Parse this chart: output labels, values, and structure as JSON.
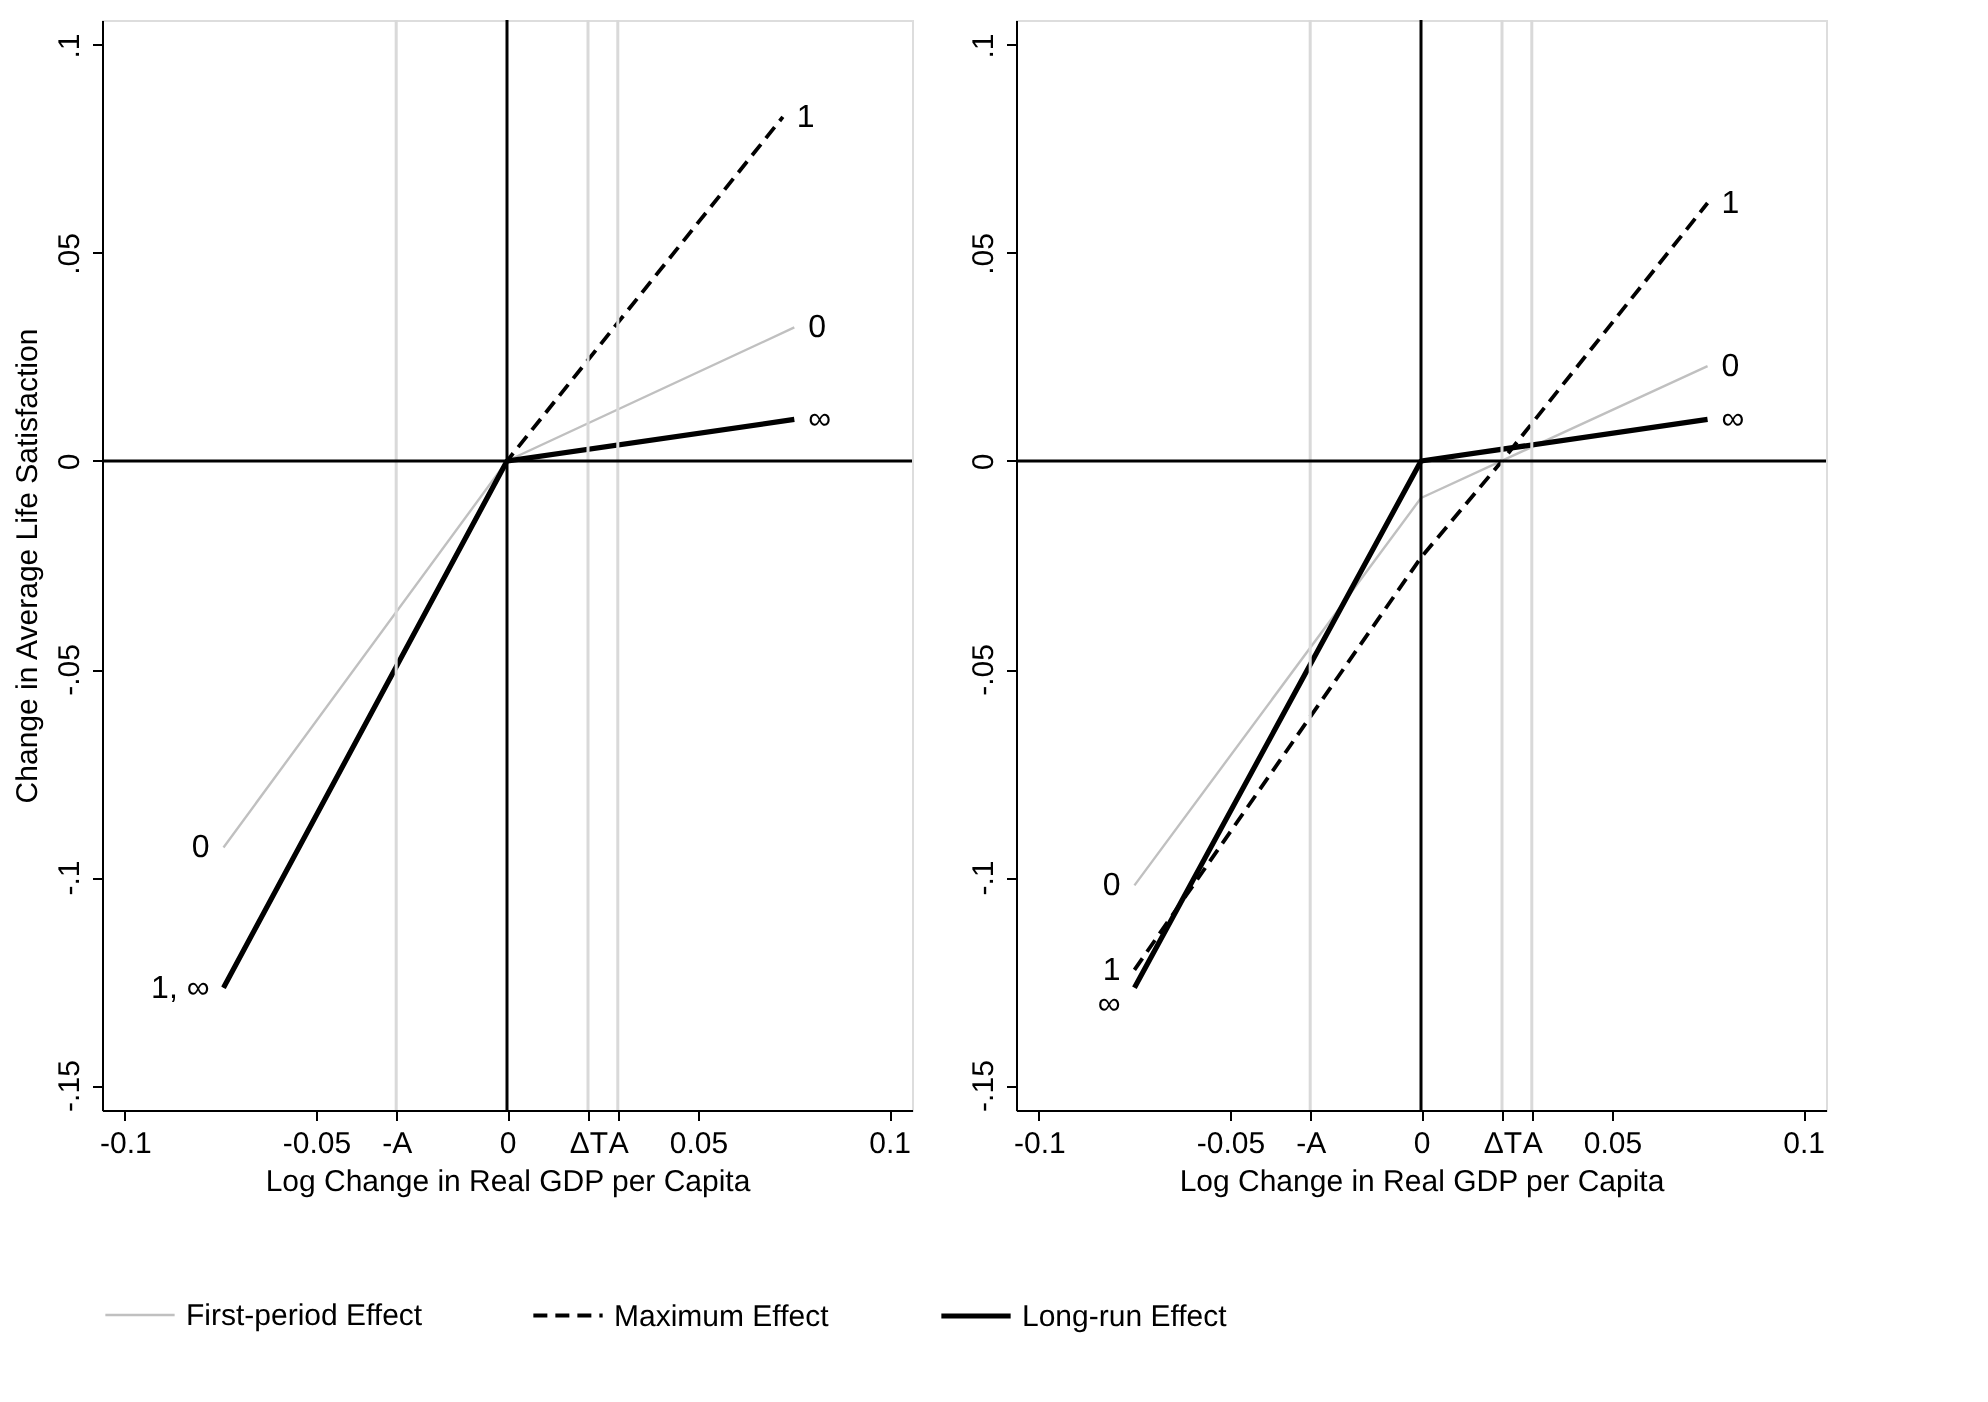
{
  "chart_data": [
    {
      "type": "line",
      "xlabel": "Log Change in Real GDP per Capita",
      "ylabel": "Change in Average Life Satisfaction",
      "xlim": [
        -0.106,
        0.106
      ],
      "ylim": [
        -0.156,
        0.106
      ],
      "xticks": [
        -0.1,
        -0.05,
        {
          "value": -0.029,
          "label": "-A"
        },
        0,
        {
          "value": 0.0212,
          "label": "ΔT"
        },
        {
          "value": 0.029,
          "label": "A"
        },
        0.05,
        0.1
      ],
      "yticks": [
        {
          "value": -0.15,
          "label": "-.15"
        },
        {
          "value": -0.1,
          "label": "-.1"
        },
        {
          "value": -0.05,
          "label": "-.05"
        },
        0,
        {
          "value": 0.05,
          "label": ".05"
        },
        {
          "value": 0.1,
          "label": ".1"
        }
      ],
      "grid": false,
      "legend": "bottom",
      "series": [
        {
          "name": "First-period Effect",
          "color": "#c0c0c0",
          "line_style": "solid",
          "x": [
            -0.0742,
            0,
            0.0752
          ],
          "values": [
            -0.0929,
            0,
            0.0321
          ]
        },
        {
          "name": "Maximum Effect",
          "color": "#000000",
          "line_style": "dashed",
          "x": [
            -0.0742,
            0,
            0.0722
          ],
          "values": [
            -0.1266,
            0,
            0.0827
          ]
        },
        {
          "name": "Long-run Effect",
          "color": "#000000",
          "line_style": "solid",
          "x": [
            -0.0742,
            0,
            0.0752
          ],
          "values": [
            -0.1266,
            0,
            0.01
          ]
        }
      ],
      "ref_lines": [
        {
          "axis": "x",
          "value": -0.029,
          "color": "#d9d9d9"
        },
        {
          "axis": "x",
          "value": 0.0212,
          "color": "#d9d9d9"
        },
        {
          "axis": "x",
          "value": 0.029,
          "color": "#d9d9d9"
        },
        {
          "axis": "x",
          "value": 0,
          "color": "#000000"
        },
        {
          "axis": "y",
          "value": 0,
          "color": "#000000"
        }
      ],
      "annotations": [
        {
          "text": "1",
          "x": 0.0722,
          "y": 0.0827
        },
        {
          "text": "0",
          "x": 0.0752,
          "y": 0.0321
        },
        {
          "text": "∞",
          "x": 0.0752,
          "y": 0.01
        },
        {
          "text": "0",
          "x": -0.0742,
          "y": -0.0929
        },
        {
          "text": "1, ∞",
          "x": -0.0742,
          "y": -0.1266
        }
      ]
    },
    {
      "type": "line",
      "xlabel": "Log Change in Real GDP per Capita",
      "xlim": [
        -0.106,
        0.106
      ],
      "ylim": [
        -0.156,
        0.106
      ],
      "xticks": [
        -0.1,
        -0.05,
        {
          "value": -0.029,
          "label": "-A"
        },
        0,
        {
          "value": 0.0212,
          "label": "ΔT"
        },
        {
          "value": 0.029,
          "label": "A"
        },
        0.05,
        0.1
      ],
      "yticks": [
        {
          "value": -0.15,
          "label": "-.15"
        },
        {
          "value": -0.1,
          "label": "-.1"
        },
        {
          "value": -0.05,
          "label": "-.05"
        },
        0,
        {
          "value": 0.05,
          "label": ".05"
        },
        {
          "value": 0.1,
          "label": ".1"
        }
      ],
      "grid": false,
      "legend": "bottom",
      "series": [
        {
          "name": "First-period Effect",
          "color": "#c0c0c0",
          "line_style": "solid",
          "x": [
            -0.075,
            0,
            0.075
          ],
          "values": [
            -0.102,
            -0.0089,
            0.0228
          ]
        },
        {
          "name": "Maximum Effect",
          "color": "#000000",
          "line_style": "dashed",
          "x": [
            -0.075,
            0,
            0.0212,
            0.075
          ],
          "values": [
            -0.1223,
            -0.0232,
            0,
            0.062
          ]
        },
        {
          "name": "Long-run Effect",
          "color": "#000000",
          "line_style": "solid",
          "x": [
            -0.075,
            0,
            0.075
          ],
          "values": [
            -0.1266,
            0,
            0.01
          ]
        }
      ],
      "ref_lines": [
        {
          "axis": "x",
          "value": -0.029,
          "color": "#d9d9d9"
        },
        {
          "axis": "x",
          "value": 0.0212,
          "color": "#d9d9d9"
        },
        {
          "axis": "x",
          "value": 0.029,
          "color": "#d9d9d9"
        },
        {
          "axis": "x",
          "value": 0,
          "color": "#000000"
        },
        {
          "axis": "y",
          "value": 0,
          "color": "#000000"
        }
      ],
      "annotations": [
        {
          "text": "1",
          "x": 0.075,
          "y": 0.062
        },
        {
          "text": "0",
          "x": 0.075,
          "y": 0.0228
        },
        {
          "text": "∞",
          "x": 0.075,
          "y": 0.01
        },
        {
          "text": "0",
          "x": -0.075,
          "y": -0.102
        },
        {
          "text": "1",
          "x": -0.075,
          "y": -0.1223
        },
        {
          "text": "∞",
          "x": -0.075,
          "y": -0.1266
        }
      ]
    }
  ]
}
